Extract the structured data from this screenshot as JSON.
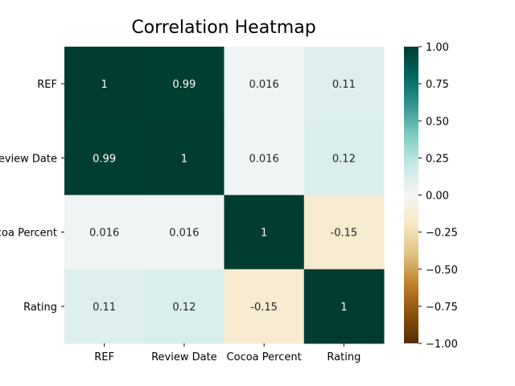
{
  "chart_data": {
    "type": "heatmap",
    "title": "Correlation Heatmap",
    "row_labels": [
      "REF",
      "Review Date",
      "Cocoa Percent",
      "Rating"
    ],
    "col_labels": [
      "REF",
      "Review Date",
      "Cocoa Percent",
      "Rating"
    ],
    "values": [
      [
        1,
        0.99,
        0.016,
        0.11
      ],
      [
        0.99,
        1,
        0.016,
        0.12
      ],
      [
        0.016,
        0.016,
        1,
        -0.15
      ],
      [
        0.11,
        0.12,
        -0.15,
        1
      ]
    ],
    "annotations": [
      [
        "1",
        "0.99",
        "0.016",
        "0.11"
      ],
      [
        "0.99",
        "1",
        "0.016",
        "0.12"
      ],
      [
        "0.016",
        "0.016",
        "1",
        "-0.15"
      ],
      [
        "0.11",
        "0.12",
        "-0.15",
        "1"
      ]
    ],
    "colormap": "BrBG",
    "vmin": -1,
    "vmax": 1,
    "colorbar_ticks": [
      1.0,
      0.75,
      0.5,
      0.25,
      0.0,
      -0.25,
      -0.5,
      -0.75,
      -1.0
    ],
    "colorbar_tick_labels": [
      "1.00",
      "0.75",
      "0.50",
      "0.25",
      "0.00",
      "−0.25",
      "−0.50",
      "−0.75",
      "−1.00"
    ]
  }
}
